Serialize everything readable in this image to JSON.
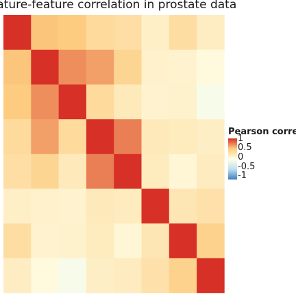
{
  "chart_data": {
    "type": "heatmap",
    "title": "Feature-feature correlation in prostate data",
    "rows": 8,
    "cols": 8,
    "values": [
      [
        1.0,
        0.52,
        0.5,
        0.36,
        0.32,
        0.16,
        0.33,
        0.18
      ],
      [
        0.52,
        1.0,
        0.7,
        0.64,
        0.41,
        0.14,
        0.12,
        0.05
      ],
      [
        0.5,
        0.7,
        1.0,
        0.36,
        0.22,
        0.12,
        0.13,
        -0.06
      ],
      [
        0.36,
        0.64,
        0.36,
        1.0,
        0.75,
        0.22,
        0.2,
        0.17
      ],
      [
        0.32,
        0.41,
        0.22,
        0.75,
        1.0,
        0.2,
        0.09,
        0.19
      ],
      [
        0.16,
        0.14,
        0.12,
        0.22,
        0.2,
        1.0,
        0.25,
        0.3
      ],
      [
        0.33,
        0.12,
        0.13,
        0.2,
        0.09,
        0.25,
        1.0,
        0.44
      ],
      [
        0.18,
        0.05,
        -0.06,
        0.17,
        0.19,
        0.3,
        0.44,
        1.0
      ]
    ],
    "legend": {
      "title": "Pearson correlation",
      "ticks": [
        "1",
        "0.5",
        "0",
        "-0.5",
        "-1"
      ],
      "range": [
        -1,
        1
      ]
    },
    "colors": {
      "low": "#3f7fbf",
      "low_mid": "#bfe0f0",
      "mid": "#ffffe8",
      "high_mid": "#fdcc80",
      "high": "#d73027"
    }
  }
}
